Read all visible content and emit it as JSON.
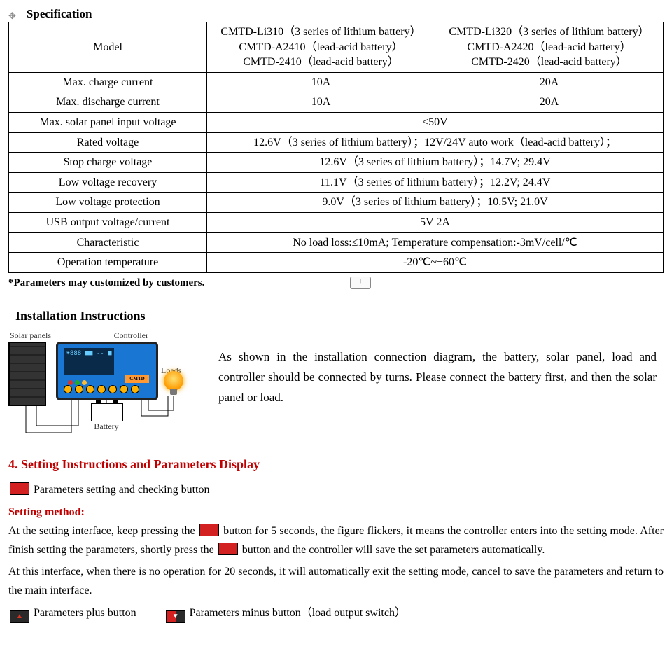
{
  "spec": {
    "title": "Specification",
    "rows": [
      {
        "label": "Model",
        "c1": "CMTD-Li310（3 series of lithium battery）\nCMTD-A2410（lead-acid battery）\nCMTD-2410（lead-acid battery）",
        "c2": "CMTD-Li320（3 series of lithium battery）\nCMTD-A2420（lead-acid battery）\nCMTD-2420（lead-acid battery）"
      },
      {
        "label": "Max. charge current",
        "c1": "10A",
        "c2": "20A"
      },
      {
        "label": "Max. discharge current",
        "c1": "10A",
        "c2": "20A"
      },
      {
        "label": "Max. solar panel input voltage",
        "merged": "≤50V"
      },
      {
        "label": "Rated voltage",
        "merged": "12.6V（3 series of lithium battery）；12V/24V auto work（lead-acid battery）；"
      },
      {
        "label": "Stop charge voltage",
        "merged": "12.6V（3 series of lithium battery）；14.7V; 29.4V"
      },
      {
        "label": "Low voltage recovery",
        "merged": "11.1V（3 series of lithium battery）；12.2V; 24.4V"
      },
      {
        "label": "Low voltage protection",
        "merged": "9.0V（3 series of lithium battery）；10.5V; 21.0V"
      },
      {
        "label": "USB output voltage/current",
        "merged": "5V 2A"
      },
      {
        "label": "Characteristic",
        "merged": "No load loss:≤10mA; Temperature compensation:-3mV/cell/℃"
      },
      {
        "label": "Operation temperature",
        "merged": "-20℃~+60℃"
      }
    ],
    "footnote": "*Parameters may customized by customers."
  },
  "install": {
    "heading": "Installation Instructions",
    "labels": {
      "solar": "Solar panels",
      "controller": "Controller",
      "loads": "Loads",
      "battery": "Battery",
      "brand": "CMTD",
      "screen": "☀888\n■■ -- ■"
    },
    "text": "As shown in the installation connection diagram, the battery, solar panel, load and controller should be connected by turns. Please connect the battery first, and then the solar panel or load."
  },
  "setting": {
    "heading": "4. Setting Instructions and Parameters Display",
    "line1": "Parameters setting and checking button",
    "method_h": "Setting method:",
    "para1a": "At the setting interface, keep pressing the ",
    "para1b": " button for 5 seconds, the figure flickers, it means the controller enters into the setting mode. After finish setting the parameters, shortly press the ",
    "para1c": " button and the controller will save the set parameters automatically.",
    "para2": "At this interface, when there is no operation for 20 seconds, it will automatically exit the setting mode, cancel to save the parameters and return to the main interface.",
    "plus": "Parameters plus button",
    "minus": "Parameters minus button（load output switch）"
  },
  "colors": {
    "heading_red": "#c00000",
    "btn_red": "#d32020",
    "controller_blue": "#1976d2",
    "bulb_orange": "#ff9a00"
  }
}
